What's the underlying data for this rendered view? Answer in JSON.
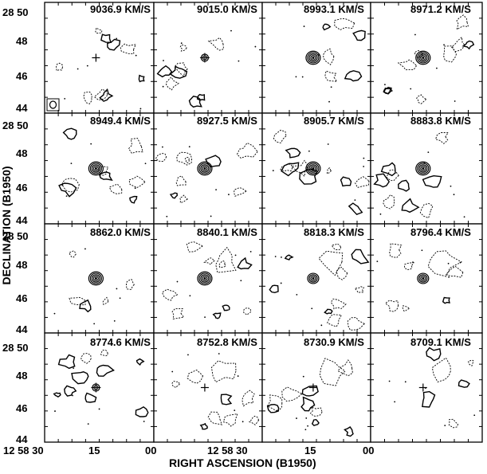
{
  "axes": {
    "xlabel": "RIGHT ASCENSION (B1950)",
    "ylabel": "DECLINATION (B1950)",
    "y_ticks": [
      "28 50",
      "48",
      "46",
      "44"
    ],
    "x_ticks": [
      "12 58 30",
      "15",
      "00",
      "12 58 30",
      "15",
      "00"
    ]
  },
  "panels": [
    {
      "velocity": "9036.9 KM/S",
      "source": "cross",
      "beam": true,
      "contours": []
    },
    {
      "velocity": "9015.0 KM/S",
      "source": "weak",
      "beam": false,
      "contours": []
    },
    {
      "velocity": "8993.1 KM/S",
      "source": "strong",
      "beam": false,
      "contours": []
    },
    {
      "velocity": "8971.2 KM/S",
      "source": "strong",
      "beam": false,
      "contours": []
    },
    {
      "velocity": "8949.4 KM/S",
      "source": "strong",
      "beam": false,
      "contours": []
    },
    {
      "velocity": "8927.5 KM/S",
      "source": "strong",
      "beam": false,
      "contours": []
    },
    {
      "velocity": "8905.7 KM/S",
      "source": "strong",
      "beam": false,
      "contours": []
    },
    {
      "velocity": "8883.8 KM/S",
      "source": "strong",
      "beam": false,
      "contours": []
    },
    {
      "velocity": "8862.0 KM/S",
      "source": "strong",
      "beam": false,
      "contours": []
    },
    {
      "velocity": "8840.1 KM/S",
      "source": "strong",
      "beam": false,
      "contours": []
    },
    {
      "velocity": "8818.3 KM/S",
      "source": "medium",
      "beam": false,
      "contours": []
    },
    {
      "velocity": "8796.4 KM/S",
      "source": "medium",
      "beam": false,
      "contours": []
    },
    {
      "velocity": "8774.6 KM/S",
      "source": "weak",
      "beam": false,
      "contours": []
    },
    {
      "velocity": "8752.8 KM/S",
      "source": "cross",
      "beam": false,
      "contours": []
    },
    {
      "velocity": "8730.9 KM/S",
      "source": "cross",
      "beam": false,
      "contours": []
    },
    {
      "velocity": "8709.1 KM/S",
      "source": "cross",
      "beam": false,
      "contours": []
    }
  ]
}
